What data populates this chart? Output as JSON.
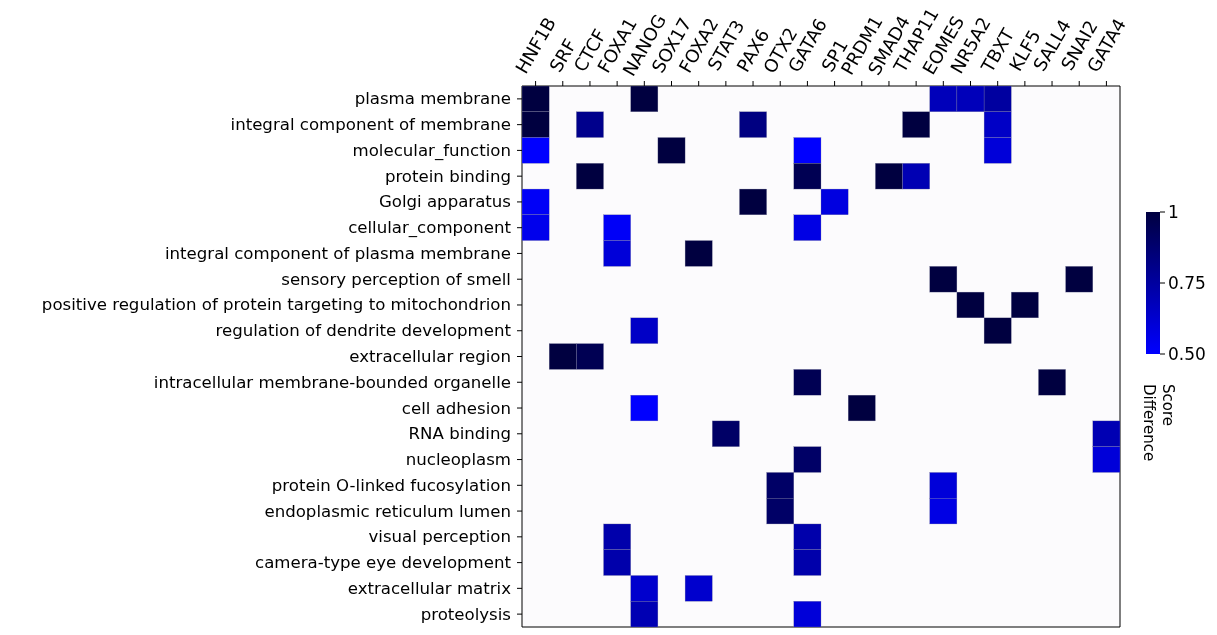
{
  "chart_data": {
    "type": "heatmap",
    "categories": [
      "HNF1B",
      "SRF",
      "CTCF",
      "FOXA1",
      "NANOG",
      "SOX17",
      "FOXA2",
      "STAT3",
      "PAX6",
      "OTX2",
      "GATA6",
      "SP1",
      "PRDM1",
      "SMAD4",
      "THAP11",
      "EOMES",
      "NR5A2",
      "TBXT",
      "KLF5",
      "SALL4",
      "SNAI2",
      "GATA4"
    ],
    "y_categories": [
      "plasma membrane",
      "integral component of membrane",
      "molecular_function",
      "protein binding",
      "Golgi apparatus",
      "cellular_component",
      "integral component of plasma membrane",
      "sensory perception of smell",
      "positive regulation of protein targeting to mitochondrion",
      "regulation of dendrite development",
      "extracellular region",
      "intracellular membrane-bounded organelle",
      "cell adhesion",
      "RNA binding",
      "nucleoplasm",
      "protein O-linked fucosylation",
      "endoplasmic reticulum lumen",
      "visual perception",
      "camera-type eye development",
      "extracellular matrix",
      "proteolysis"
    ],
    "cells": [
      [
        1,
        null,
        null,
        null,
        1,
        null,
        null,
        null,
        null,
        null,
        null,
        null,
        null,
        null,
        null,
        0.68,
        0.68,
        0.75,
        null,
        null,
        null,
        null
      ],
      [
        1,
        null,
        0.8,
        null,
        null,
        null,
        null,
        null,
        0.83,
        null,
        null,
        null,
        null,
        null,
        1,
        null,
        null,
        0.65,
        null,
        null,
        null,
        null
      ],
      [
        0.5,
        null,
        null,
        null,
        null,
        1,
        null,
        null,
        null,
        null,
        0.5,
        null,
        null,
        null,
        null,
        null,
        null,
        0.6,
        null,
        null,
        null,
        null
      ],
      [
        null,
        null,
        1,
        null,
        null,
        null,
        null,
        null,
        null,
        null,
        0.95,
        null,
        null,
        1,
        0.7,
        null,
        null,
        null,
        null,
        null,
        null,
        null
      ],
      [
        0.52,
        null,
        null,
        null,
        null,
        null,
        null,
        null,
        1,
        null,
        null,
        0.58,
        null,
        null,
        null,
        null,
        null,
        null,
        null,
        null,
        null,
        null
      ],
      [
        0.55,
        null,
        null,
        0.52,
        null,
        null,
        null,
        null,
        null,
        null,
        0.57,
        null,
        null,
        null,
        null,
        null,
        null,
        null,
        null,
        null,
        null,
        null
      ],
      [
        null,
        null,
        null,
        0.6,
        null,
        null,
        1,
        null,
        null,
        null,
        null,
        null,
        null,
        null,
        null,
        null,
        null,
        null,
        null,
        null,
        null,
        null
      ],
      [
        null,
        null,
        null,
        null,
        null,
        null,
        null,
        null,
        null,
        null,
        null,
        null,
        null,
        null,
        null,
        1,
        null,
        null,
        null,
        null,
        1,
        null
      ],
      [
        null,
        null,
        null,
        null,
        null,
        null,
        null,
        null,
        null,
        null,
        null,
        null,
        null,
        null,
        null,
        null,
        1,
        null,
        1,
        null,
        null,
        null
      ],
      [
        null,
        null,
        null,
        null,
        0.65,
        null,
        null,
        null,
        null,
        null,
        null,
        null,
        null,
        null,
        null,
        null,
        null,
        1,
        null,
        null,
        null,
        null
      ],
      [
        null,
        1,
        0.95,
        null,
        null,
        null,
        null,
        null,
        null,
        null,
        null,
        null,
        null,
        null,
        null,
        null,
        null,
        null,
        null,
        null,
        null,
        null
      ],
      [
        null,
        null,
        null,
        null,
        null,
        null,
        null,
        null,
        null,
        null,
        0.95,
        null,
        null,
        null,
        null,
        null,
        null,
        null,
        null,
        1,
        null,
        null
      ],
      [
        null,
        null,
        null,
        null,
        0.5,
        null,
        null,
        null,
        null,
        null,
        null,
        null,
        1,
        null,
        null,
        null,
        null,
        null,
        null,
        null,
        null,
        null
      ],
      [
        null,
        null,
        null,
        null,
        null,
        null,
        null,
        0.9,
        null,
        null,
        null,
        null,
        null,
        null,
        null,
        null,
        null,
        null,
        null,
        null,
        null,
        0.7
      ],
      [
        null,
        null,
        null,
        null,
        null,
        null,
        null,
        null,
        null,
        null,
        0.9,
        null,
        null,
        null,
        null,
        null,
        null,
        null,
        null,
        null,
        null,
        0.6
      ],
      [
        null,
        null,
        null,
        null,
        null,
        null,
        null,
        null,
        null,
        0.9,
        null,
        null,
        null,
        null,
        null,
        0.6,
        null,
        null,
        null,
        null,
        null,
        null
      ],
      [
        null,
        null,
        null,
        null,
        null,
        null,
        null,
        null,
        null,
        0.9,
        null,
        null,
        null,
        null,
        null,
        0.57,
        null,
        null,
        null,
        null,
        null,
        null
      ],
      [
        null,
        null,
        null,
        0.72,
        null,
        null,
        null,
        null,
        null,
        null,
        0.72,
        null,
        null,
        null,
        null,
        null,
        null,
        null,
        null,
        null,
        null,
        null
      ],
      [
        null,
        null,
        null,
        0.72,
        null,
        null,
        null,
        null,
        null,
        null,
        0.72,
        null,
        null,
        null,
        null,
        null,
        null,
        null,
        null,
        null,
        null,
        null
      ],
      [
        null,
        null,
        null,
        null,
        0.63,
        null,
        0.63,
        null,
        null,
        null,
        null,
        null,
        null,
        null,
        null,
        null,
        null,
        null,
        null,
        null,
        null,
        null
      ],
      [
        null,
        null,
        null,
        null,
        0.7,
        null,
        null,
        null,
        null,
        null,
        0.6,
        null,
        null,
        null,
        null,
        null,
        null,
        null,
        null,
        null,
        null,
        null
      ]
    ],
    "clim": [
      0.5,
      1
    ],
    "cticks": [
      {
        "value": 0.5,
        "label": "0.50"
      },
      0.75,
      1
    ],
    "clabel": "Difference Score"
  }
}
